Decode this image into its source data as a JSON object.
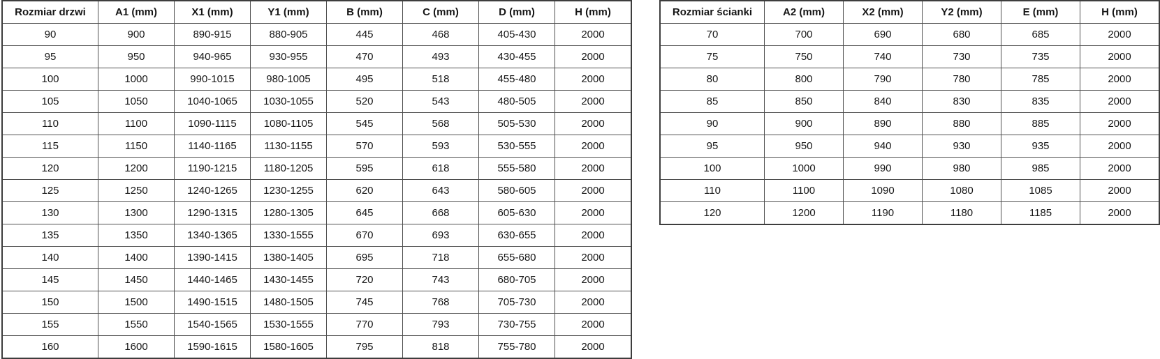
{
  "door_table": {
    "headers": [
      "Rozmiar drzwi",
      "A1 (mm)",
      "X1 (mm)",
      "Y1 (mm)",
      "B (mm)",
      "C (mm)",
      "D (mm)",
      "H (mm)"
    ],
    "rows": [
      [
        "90",
        "900",
        "890-915",
        "880-905",
        "445",
        "468",
        "405-430",
        "2000"
      ],
      [
        "95",
        "950",
        "940-965",
        "930-955",
        "470",
        "493",
        "430-455",
        "2000"
      ],
      [
        "100",
        "1000",
        "990-1015",
        "980-1005",
        "495",
        "518",
        "455-480",
        "2000"
      ],
      [
        "105",
        "1050",
        "1040-1065",
        "1030-1055",
        "520",
        "543",
        "480-505",
        "2000"
      ],
      [
        "110",
        "1100",
        "1090-1115",
        "1080-1105",
        "545",
        "568",
        "505-530",
        "2000"
      ],
      [
        "115",
        "1150",
        "1140-1165",
        "1130-1155",
        "570",
        "593",
        "530-555",
        "2000"
      ],
      [
        "120",
        "1200",
        "1190-1215",
        "1180-1205",
        "595",
        "618",
        "555-580",
        "2000"
      ],
      [
        "125",
        "1250",
        "1240-1265",
        "1230-1255",
        "620",
        "643",
        "580-605",
        "2000"
      ],
      [
        "130",
        "1300",
        "1290-1315",
        "1280-1305",
        "645",
        "668",
        "605-630",
        "2000"
      ],
      [
        "135",
        "1350",
        "1340-1365",
        "1330-1555",
        "670",
        "693",
        "630-655",
        "2000"
      ],
      [
        "140",
        "1400",
        "1390-1415",
        "1380-1405",
        "695",
        "718",
        "655-680",
        "2000"
      ],
      [
        "145",
        "1450",
        "1440-1465",
        "1430-1455",
        "720",
        "743",
        "680-705",
        "2000"
      ],
      [
        "150",
        "1500",
        "1490-1515",
        "1480-1505",
        "745",
        "768",
        "705-730",
        "2000"
      ],
      [
        "155",
        "1550",
        "1540-1565",
        "1530-1555",
        "770",
        "793",
        "730-755",
        "2000"
      ],
      [
        "160",
        "1600",
        "1590-1615",
        "1580-1605",
        "795",
        "818",
        "755-780",
        "2000"
      ]
    ]
  },
  "wall_table": {
    "headers": [
      "Rozmiar ścianki",
      "A2 (mm)",
      "X2 (mm)",
      "Y2 (mm)",
      "E (mm)",
      "H (mm)"
    ],
    "rows": [
      [
        "70",
        "700",
        "690",
        "680",
        "685",
        "2000"
      ],
      [
        "75",
        "750",
        "740",
        "730",
        "735",
        "2000"
      ],
      [
        "80",
        "800",
        "790",
        "780",
        "785",
        "2000"
      ],
      [
        "85",
        "850",
        "840",
        "830",
        "835",
        "2000"
      ],
      [
        "90",
        "900",
        "890",
        "880",
        "885",
        "2000"
      ],
      [
        "95",
        "950",
        "940",
        "930",
        "935",
        "2000"
      ],
      [
        "100",
        "1000",
        "990",
        "980",
        "985",
        "2000"
      ],
      [
        "110",
        "1100",
        "1090",
        "1080",
        "1085",
        "2000"
      ],
      [
        "120",
        "1200",
        "1190",
        "1180",
        "1185",
        "2000"
      ]
    ]
  },
  "colors": {
    "background": "#ffffff",
    "text": "#161616",
    "border": "#4f4f4f"
  }
}
